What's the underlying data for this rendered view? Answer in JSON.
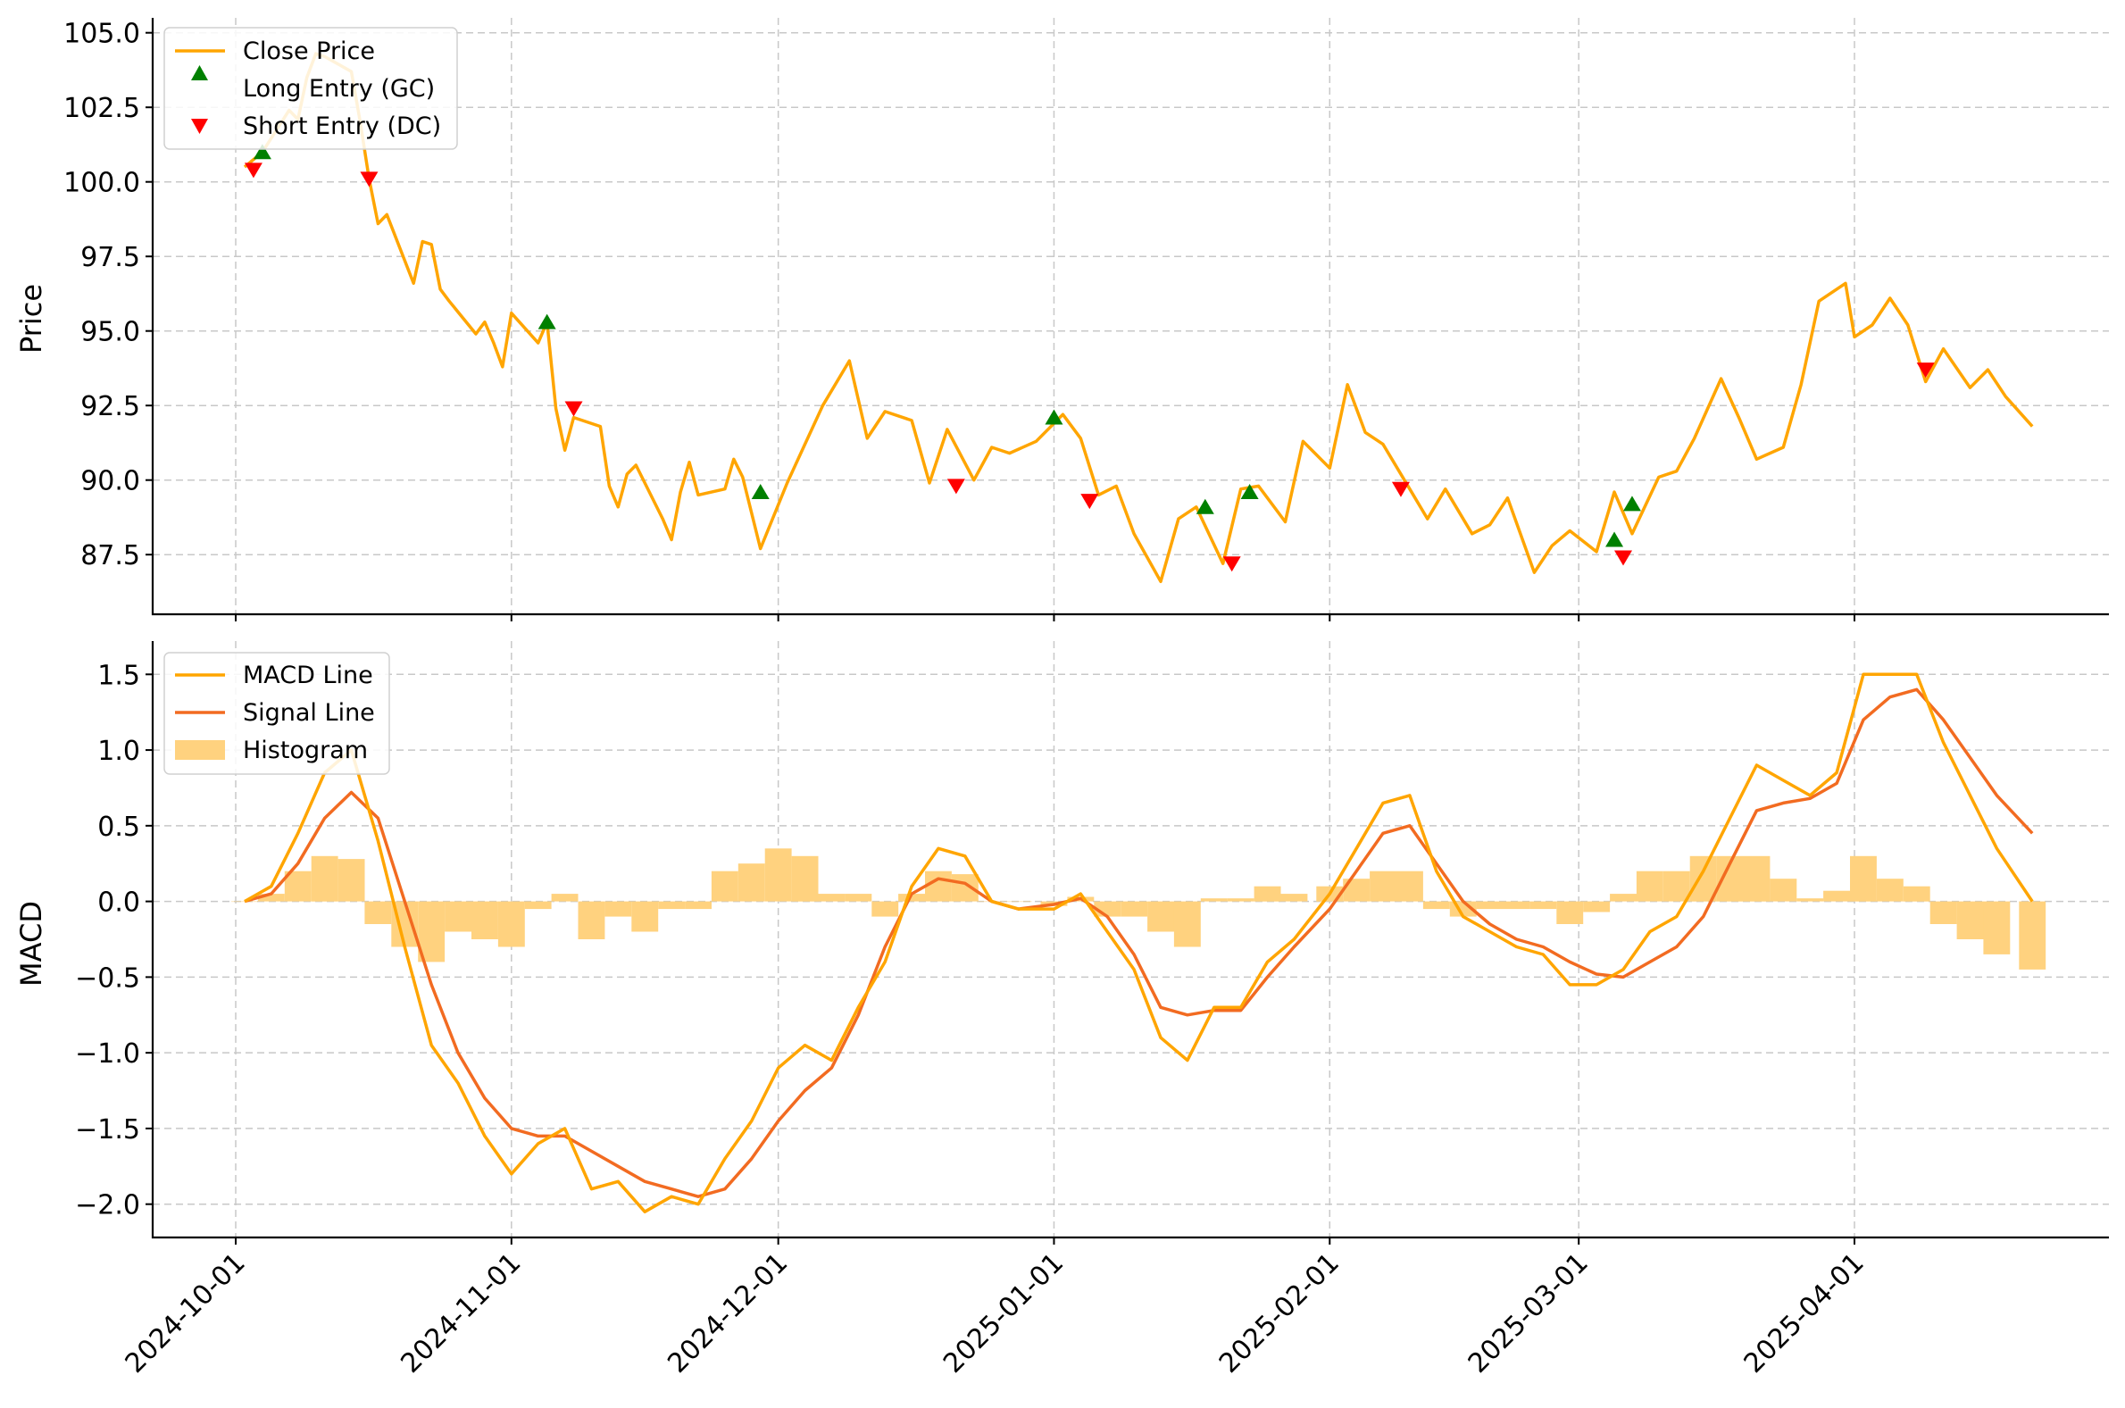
{
  "colors": {
    "close": "#FFA500",
    "macd": "#FFA500",
    "signal": "#F26B21",
    "histogram": "#FFD27F",
    "long": "#008000",
    "short": "#FF0000"
  },
  "x_ticks": [
    "2024-10-01",
    "2024-11-01",
    "2024-12-01",
    "2025-01-01",
    "2025-02-01",
    "2025-03-01",
    "2025-04-01"
  ],
  "chart_data": [
    {
      "type": "line",
      "ylabel": "Price",
      "ylim": [
        85.5,
        105.5
      ],
      "yticks": [
        "105.0",
        "102.5",
        "100.0",
        "97.5",
        "95.0",
        "92.5",
        "90.0",
        "87.5"
      ],
      "grid": true,
      "legend_position": "top-left",
      "legend": [
        "Close Price",
        "Long Entry (GC)",
        "Short Entry (DC)"
      ],
      "series": [
        {
          "name": "Close Price",
          "x": [
            "2024-10-02",
            "2024-10-04",
            "2024-10-07",
            "2024-10-08",
            "2024-10-09",
            "2024-10-10",
            "2024-10-11",
            "2024-10-14",
            "2024-10-15",
            "2024-10-16",
            "2024-10-17",
            "2024-10-18",
            "2024-10-21",
            "2024-10-22",
            "2024-10-23",
            "2024-10-24",
            "2024-10-25",
            "2024-10-28",
            "2024-10-29",
            "2024-10-30",
            "2024-10-31",
            "2024-11-01",
            "2024-11-04",
            "2024-11-05",
            "2024-11-06",
            "2024-11-07",
            "2024-11-08",
            "2024-11-11",
            "2024-11-12",
            "2024-11-13",
            "2024-11-14",
            "2024-11-15",
            "2024-11-18",
            "2024-11-19",
            "2024-11-20",
            "2024-11-21",
            "2024-11-22",
            "2024-11-25",
            "2024-11-26",
            "2024-11-27",
            "2024-11-29",
            "2024-12-02",
            "2024-12-04",
            "2024-12-06",
            "2024-12-09",
            "2024-12-11",
            "2024-12-13",
            "2024-12-16",
            "2024-12-18",
            "2024-12-20",
            "2024-12-23",
            "2024-12-25",
            "2024-12-27",
            "2024-12-30",
            "2025-01-02",
            "2025-01-04",
            "2025-01-06",
            "2025-01-08",
            "2025-01-10",
            "2025-01-13",
            "2025-01-15",
            "2025-01-17",
            "2025-01-20",
            "2025-01-22",
            "2025-01-24",
            "2025-01-27",
            "2025-01-29",
            "2025-02-01",
            "2025-02-03",
            "2025-02-05",
            "2025-02-07",
            "2025-02-10",
            "2025-02-12",
            "2025-02-14",
            "2025-02-17",
            "2025-02-19",
            "2025-02-21",
            "2025-02-24",
            "2025-02-26",
            "2025-02-28",
            "2025-03-03",
            "2025-03-05",
            "2025-03-07",
            "2025-03-10",
            "2025-03-12",
            "2025-03-14",
            "2025-03-17",
            "2025-03-19",
            "2025-03-21",
            "2025-03-24",
            "2025-03-26",
            "2025-03-28",
            "2025-03-31",
            "2025-04-01",
            "2025-04-03",
            "2025-04-05",
            "2025-04-07",
            "2025-04-09",
            "2025-04-11",
            "2025-04-14",
            "2025-04-16",
            "2025-04-18",
            "2025-04-21"
          ],
          "values": [
            100.5,
            101.0,
            102.4,
            102.1,
            103.5,
            104.3,
            104.2,
            103.7,
            102.0,
            100.1,
            98.6,
            98.9,
            96.6,
            98.0,
            97.9,
            96.4,
            96.0,
            94.9,
            95.3,
            94.6,
            93.8,
            95.6,
            94.6,
            95.3,
            92.4,
            91.0,
            92.1,
            91.8,
            89.8,
            89.1,
            90.2,
            90.5,
            88.7,
            88.0,
            89.6,
            90.6,
            89.5,
            89.7,
            90.7,
            90.1,
            87.7,
            89.9,
            91.2,
            92.5,
            94.0,
            91.4,
            92.3,
            92.0,
            89.9,
            91.7,
            90.0,
            91.1,
            90.9,
            91.3,
            92.2,
            91.4,
            89.5,
            89.8,
            88.2,
            86.6,
            88.7,
            89.1,
            87.2,
            89.7,
            89.8,
            88.6,
            91.3,
            90.4,
            93.2,
            91.6,
            91.2,
            89.7,
            88.7,
            89.7,
            88.2,
            88.5,
            89.4,
            86.9,
            87.8,
            88.3,
            87.6,
            89.6,
            88.2,
            90.1,
            90.3,
            91.4,
            93.4,
            92.1,
            90.7,
            91.1,
            93.2,
            96.0,
            96.6,
            94.8,
            95.2,
            96.1,
            95.2,
            93.3,
            94.4,
            93.1,
            93.7,
            92.8,
            91.8
          ]
        }
      ],
      "long_entries": [
        {
          "x": "2024-10-04",
          "y": 101.0
        },
        {
          "x": "2024-11-05",
          "y": 95.3
        },
        {
          "x": "2024-11-29",
          "y": 89.6
        },
        {
          "x": "2025-01-01",
          "y": 92.1
        },
        {
          "x": "2025-01-18",
          "y": 89.1
        },
        {
          "x": "2025-01-23",
          "y": 89.6
        },
        {
          "x": "2025-03-05",
          "y": 88.0
        },
        {
          "x": "2025-03-07",
          "y": 89.2
        }
      ],
      "short_entries": [
        {
          "x": "2024-10-03",
          "y": 100.4
        },
        {
          "x": "2024-10-16",
          "y": 100.1
        },
        {
          "x": "2024-11-08",
          "y": 92.4
        },
        {
          "x": "2024-12-21",
          "y": 89.8
        },
        {
          "x": "2025-01-05",
          "y": 89.3
        },
        {
          "x": "2025-01-21",
          "y": 87.2
        },
        {
          "x": "2025-02-09",
          "y": 89.7
        },
        {
          "x": "2025-03-06",
          "y": 87.4
        },
        {
          "x": "2025-04-09",
          "y": 93.7
        }
      ]
    },
    {
      "type": "line",
      "ylabel": "MACD",
      "ylim": [
        -2.22,
        1.72
      ],
      "yticks": [
        "1.5",
        "1.0",
        "0.5",
        "0.0",
        "−0.5",
        "−1.0",
        "−1.5",
        "−2.0"
      ],
      "grid": true,
      "legend_position": "top-left",
      "legend": [
        "MACD Line",
        "Signal Line",
        "Histogram"
      ],
      "x": [
        "2024-10-02",
        "2024-10-05",
        "2024-10-08",
        "2024-10-11",
        "2024-10-14",
        "2024-10-17",
        "2024-10-20",
        "2024-10-23",
        "2024-10-26",
        "2024-10-29",
        "2024-11-01",
        "2024-11-04",
        "2024-11-07",
        "2024-11-10",
        "2024-11-13",
        "2024-11-16",
        "2024-11-19",
        "2024-11-22",
        "2024-11-25",
        "2024-11-28",
        "2024-12-01",
        "2024-12-04",
        "2024-12-07",
        "2024-12-10",
        "2024-12-13",
        "2024-12-16",
        "2024-12-19",
        "2024-12-22",
        "2024-12-25",
        "2024-12-28",
        "2025-01-01",
        "2025-01-04",
        "2025-01-07",
        "2025-01-10",
        "2025-01-13",
        "2025-01-16",
        "2025-01-19",
        "2025-01-22",
        "2025-01-25",
        "2025-01-28",
        "2025-02-01",
        "2025-02-04",
        "2025-02-07",
        "2025-02-10",
        "2025-02-13",
        "2025-02-16",
        "2025-02-19",
        "2025-02-22",
        "2025-02-25",
        "2025-02-28",
        "2025-03-03",
        "2025-03-06",
        "2025-03-09",
        "2025-03-12",
        "2025-03-15",
        "2025-03-18",
        "2025-03-21",
        "2025-03-24",
        "2025-03-27",
        "2025-03-30",
        "2025-04-02",
        "2025-04-05",
        "2025-04-08",
        "2025-04-11",
        "2025-04-14",
        "2025-04-17",
        "2025-04-21"
      ],
      "series": [
        {
          "name": "MACD Line",
          "values": [
            0.0,
            0.1,
            0.45,
            0.85,
            1.0,
            0.4,
            -0.3,
            -0.95,
            -1.2,
            -1.55,
            -1.8,
            -1.6,
            -1.5,
            -1.9,
            -1.85,
            -2.05,
            -1.95,
            -2.0,
            -1.7,
            -1.45,
            -1.1,
            -0.95,
            -1.05,
            -0.7,
            -0.4,
            0.1,
            0.35,
            0.3,
            0.0,
            -0.05,
            -0.05,
            0.05,
            -0.2,
            -0.45,
            -0.9,
            -1.05,
            -0.7,
            -0.7,
            -0.4,
            -0.25,
            0.05,
            0.35,
            0.65,
            0.7,
            0.2,
            -0.1,
            -0.2,
            -0.3,
            -0.35,
            -0.55,
            -0.55,
            -0.45,
            -0.2,
            -0.1,
            0.2,
            0.55,
            0.9,
            0.8,
            0.7,
            0.85,
            1.5,
            1.5,
            1.5,
            1.05,
            0.7,
            0.35,
            0.0
          ]
        },
        {
          "name": "Signal Line",
          "values": [
            0.0,
            0.05,
            0.25,
            0.55,
            0.72,
            0.55,
            0.0,
            -0.55,
            -1.0,
            -1.3,
            -1.5,
            -1.55,
            -1.55,
            -1.65,
            -1.75,
            -1.85,
            -1.9,
            -1.95,
            -1.9,
            -1.7,
            -1.45,
            -1.25,
            -1.1,
            -0.75,
            -0.3,
            0.05,
            0.15,
            0.12,
            0.0,
            -0.05,
            -0.02,
            0.02,
            -0.1,
            -0.35,
            -0.7,
            -0.75,
            -0.72,
            -0.72,
            -0.5,
            -0.3,
            -0.05,
            0.2,
            0.45,
            0.5,
            0.25,
            0.0,
            -0.15,
            -0.25,
            -0.3,
            -0.4,
            -0.48,
            -0.5,
            -0.4,
            -0.3,
            -0.1,
            0.25,
            0.6,
            0.65,
            0.68,
            0.78,
            1.2,
            1.35,
            1.4,
            1.2,
            0.95,
            0.7,
            0.45
          ]
        },
        {
          "name": "Histogram",
          "values": [
            0.0,
            0.05,
            0.2,
            0.3,
            0.28,
            -0.15,
            -0.3,
            -0.4,
            -0.2,
            -0.25,
            -0.3,
            -0.05,
            0.05,
            -0.25,
            -0.1,
            -0.2,
            -0.05,
            -0.05,
            0.2,
            0.25,
            0.35,
            0.3,
            0.05,
            0.05,
            -0.1,
            0.05,
            0.2,
            0.18,
            0.0,
            0.0,
            -0.03,
            0.03,
            -0.1,
            -0.1,
            -0.2,
            -0.3,
            0.02,
            0.02,
            0.1,
            0.05,
            0.1,
            0.15,
            0.2,
            0.2,
            -0.05,
            -0.1,
            -0.05,
            -0.05,
            -0.05,
            -0.15,
            -0.07,
            0.05,
            0.2,
            0.2,
            0.3,
            0.3,
            0.3,
            0.15,
            0.02,
            0.07,
            0.3,
            0.15,
            0.1,
            -0.15,
            -0.25,
            -0.35,
            -0.45
          ]
        }
      ]
    }
  ]
}
